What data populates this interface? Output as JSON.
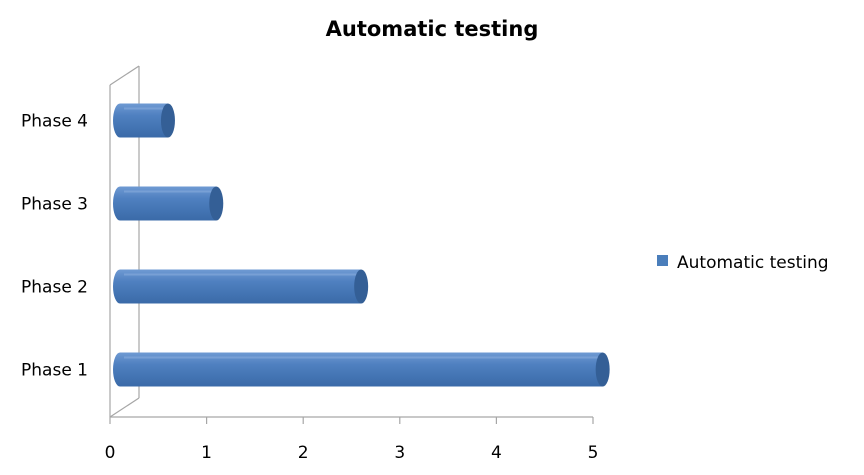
{
  "chart_data": {
    "type": "bar",
    "orientation": "horizontal",
    "title": "Automatic testing",
    "categories": [
      "Phase 1",
      "Phase 2",
      "Phase 3",
      "Phase 4"
    ],
    "series": [
      {
        "name": "Automatic testing",
        "values": [
          5.1,
          2.6,
          1.1,
          0.6
        ],
        "color": "#4a7ebb"
      }
    ],
    "xticks": [
      "0",
      "1",
      "2",
      "3",
      "4",
      "5"
    ],
    "xlim": [
      0,
      5
    ],
    "grid": false,
    "legend_position": "right",
    "style": "3d-cylinder"
  }
}
